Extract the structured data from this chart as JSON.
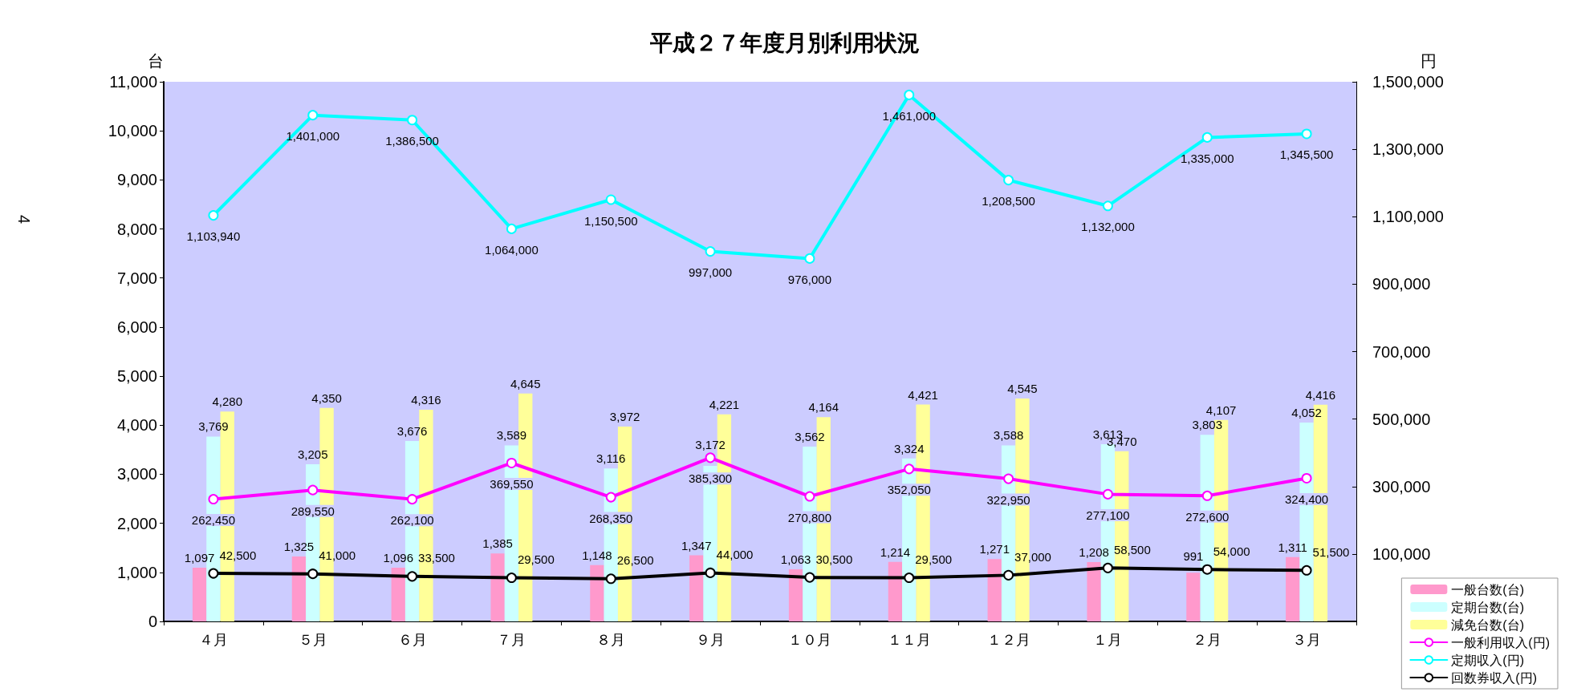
{
  "chart_data": {
    "type": "bar",
    "title": "平成２７年度月別利用状況",
    "ylabel": "台",
    "y2label": "円",
    "annotations": [
      "4"
    ],
    "categories": [
      "４月",
      "５月",
      "６月",
      "７月",
      "８月",
      "９月",
      "１０月",
      "１１月",
      "１２月",
      "１月",
      "２月",
      "３月"
    ],
    "series": [
      {
        "name": "一般台数(台)",
        "color": "#ff99cc",
        "values": [
          1097,
          1325,
          1096,
          1385,
          1148,
          1347,
          1063,
          1214,
          1271,
          1208,
          991,
          1311
        ],
        "value_labels": [
          "1,097",
          "1,325",
          "1,096",
          "1,385",
          "1,148",
          "1,347",
          "1,063",
          "1,214",
          "1,271",
          "1,208",
          "991",
          "1,311"
        ]
      },
      {
        "name": "定期台数(台)",
        "color": "#ccffff",
        "values": [
          3769,
          3205,
          3676,
          3589,
          3116,
          3172,
          3562,
          3324,
          3588,
          3613,
          3803,
          4052
        ],
        "value_labels": [
          "3,769",
          "3,205",
          "3,676",
          "3,589",
          "3,116",
          "3,172",
          "3,562",
          "3,324",
          "3,588",
          "3,613",
          "3,803",
          "4,052"
        ]
      },
      {
        "name": "減免台数(台)",
        "color": "#ffff99",
        "values": [
          4280,
          4350,
          4316,
          4645,
          3972,
          4221,
          4164,
          4421,
          4545,
          3470,
          4107,
          4416
        ],
        "value_labels": [
          "4,280",
          "4,350",
          "4,316",
          "4,645",
          "3,972",
          "4,221",
          "4,164",
          "4,421",
          "4,545",
          "3,470",
          "4,107",
          "4,416"
        ]
      },
      {
        "name": "一般利用収入(円)",
        "type": "line",
        "axis": "y2",
        "color": "#ff00ff",
        "values": [
          262450,
          289550,
          262100,
          369550,
          268350,
          385300,
          270800,
          352050,
          322950,
          277100,
          272600,
          324400
        ],
        "value_labels": [
          "262,450",
          "289,550",
          "262,100",
          "369,550",
          "268,350",
          "385,300",
          "270,800",
          "352,050",
          "322,950",
          "277,100",
          "272,600",
          "324,400"
        ]
      },
      {
        "name": "定期収入(円)",
        "type": "line",
        "axis": "y2",
        "color": "#00ffff",
        "values": [
          1103940,
          1401000,
          1386500,
          1064000,
          1150500,
          997000,
          976000,
          1461000,
          1208500,
          1132000,
          1335000,
          1345500
        ],
        "value_labels": [
          "1,103,940",
          "1,401,000",
          "1,386,500",
          "1,064,000",
          "1,150,500",
          "997,000",
          "976,000",
          "1,461,000",
          "1,208,500",
          "1,132,000",
          "1,335,000",
          "1,345,500"
        ]
      },
      {
        "name": "回数券収入(円)",
        "type": "line",
        "axis": "y2",
        "color": "#000000",
        "values": [
          42500,
          41000,
          33500,
          29500,
          26500,
          44000,
          30500,
          29500,
          37000,
          58500,
          54000,
          51500
        ],
        "value_labels": [
          "42,500",
          "41,000",
          "33,500",
          "29,500",
          "26,500",
          "44,000",
          "30,500",
          "29,500",
          "37,000",
          "58,500",
          "54,000",
          "51,500"
        ]
      }
    ],
    "ylim": [
      0,
      11000
    ],
    "yticks": [
      {
        "value": 0,
        "label": "0"
      },
      {
        "value": 1000,
        "label": "1,000"
      },
      {
        "value": 2000,
        "label": "2,000"
      },
      {
        "value": 3000,
        "label": "3,000"
      },
      {
        "value": 4000,
        "label": "4,000"
      },
      {
        "value": 5000,
        "label": "5,000"
      },
      {
        "value": 6000,
        "label": "6,000"
      },
      {
        "value": 7000,
        "label": "7,000"
      },
      {
        "value": 8000,
        "label": "8,000"
      },
      {
        "value": 9000,
        "label": "9,000"
      },
      {
        "value": 10000,
        "label": "10,000"
      },
      {
        "value": 11000,
        "label": "11,000"
      }
    ],
    "y2lim": [
      -100000,
      1500000
    ],
    "y2ticks": [
      {
        "value": 100000,
        "label": "100,000"
      },
      {
        "value": 300000,
        "label": "300,000"
      },
      {
        "value": 500000,
        "label": "500,000"
      },
      {
        "value": 700000,
        "label": "700,000"
      },
      {
        "value": 900000,
        "label": "900,000"
      },
      {
        "value": 1100000,
        "label": "1,100,000"
      },
      {
        "value": 1300000,
        "label": "1,300,000"
      },
      {
        "value": 1500000,
        "label": "1,500,000"
      }
    ],
    "grid": false,
    "legend": "bottom right",
    "marker": "circle",
    "line_style": "solid"
  }
}
